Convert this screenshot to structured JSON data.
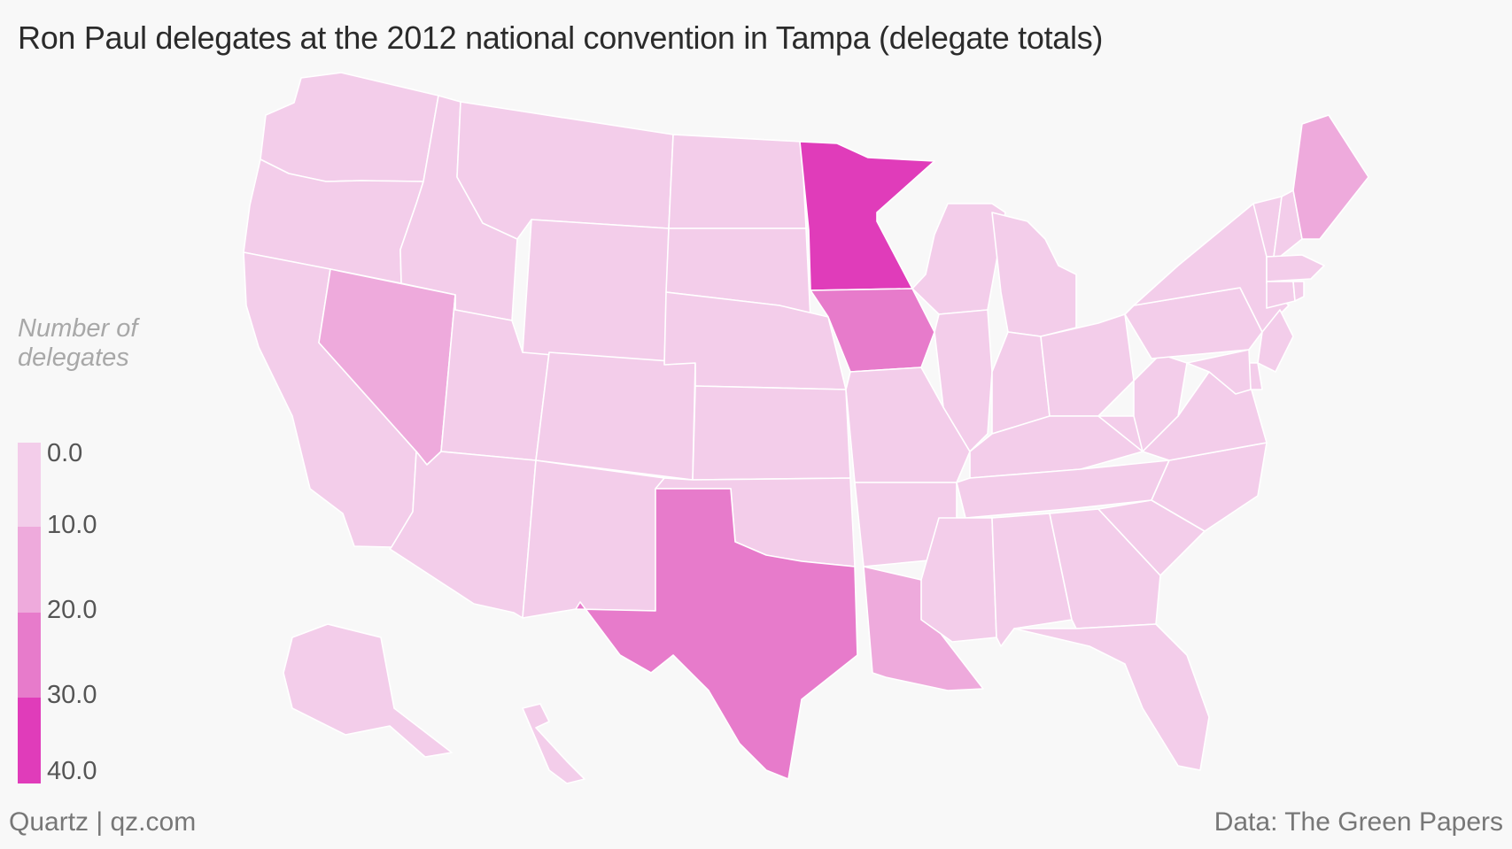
{
  "title": "Ron Paul delegates at the 2012 national convention in Tampa (delegate totals)",
  "legend": {
    "title_line1": "Number of",
    "title_line2": "delegates",
    "bins": [
      {
        "label": "0.0",
        "color": "#f3cdea"
      },
      {
        "label": "10.0",
        "color": "#eeaadc"
      },
      {
        "label": "20.0",
        "color": "#e77bcb"
      },
      {
        "label": "30.0",
        "color": "#e03cba"
      },
      {
        "label": "40.0",
        "color": null
      }
    ]
  },
  "footer": {
    "source_left": "Quartz | qz.com",
    "source_right": "Data: The Green Papers"
  },
  "map_data": {
    "type": "choropleth",
    "unit": "Number of delegates",
    "scale": [
      0,
      10,
      20,
      30,
      40
    ],
    "bin_colors": [
      "#f3cdea",
      "#eeaadc",
      "#e77bcb",
      "#e03cba"
    ],
    "states": [
      {
        "id": "WA",
        "bin": 0
      },
      {
        "id": "OR",
        "bin": 0
      },
      {
        "id": "CA",
        "bin": 0
      },
      {
        "id": "ID",
        "bin": 0
      },
      {
        "id": "NV",
        "bin": 1
      },
      {
        "id": "UT",
        "bin": 0
      },
      {
        "id": "AZ",
        "bin": 0
      },
      {
        "id": "MT",
        "bin": 0
      },
      {
        "id": "WY",
        "bin": 0
      },
      {
        "id": "CO",
        "bin": 0
      },
      {
        "id": "NM",
        "bin": 0
      },
      {
        "id": "ND",
        "bin": 0
      },
      {
        "id": "SD",
        "bin": 0
      },
      {
        "id": "NE",
        "bin": 0
      },
      {
        "id": "KS",
        "bin": 0
      },
      {
        "id": "OK",
        "bin": 0
      },
      {
        "id": "TX",
        "bin": 2
      },
      {
        "id": "MN",
        "bin": 3
      },
      {
        "id": "IA",
        "bin": 2
      },
      {
        "id": "MO",
        "bin": 0
      },
      {
        "id": "AR",
        "bin": 0
      },
      {
        "id": "LA",
        "bin": 1
      },
      {
        "id": "WI",
        "bin": 0
      },
      {
        "id": "IL",
        "bin": 0
      },
      {
        "id": "MI",
        "bin": 0
      },
      {
        "id": "IN",
        "bin": 0
      },
      {
        "id": "OH",
        "bin": 0
      },
      {
        "id": "KY",
        "bin": 0
      },
      {
        "id": "TN",
        "bin": 0
      },
      {
        "id": "MS",
        "bin": 0
      },
      {
        "id": "AL",
        "bin": 0
      },
      {
        "id": "GA",
        "bin": 0
      },
      {
        "id": "FL",
        "bin": 0
      },
      {
        "id": "SC",
        "bin": 0
      },
      {
        "id": "NC",
        "bin": 0
      },
      {
        "id": "VA",
        "bin": 0
      },
      {
        "id": "WV",
        "bin": 0
      },
      {
        "id": "PA",
        "bin": 0
      },
      {
        "id": "NY",
        "bin": 0
      },
      {
        "id": "VT",
        "bin": 0
      },
      {
        "id": "NH",
        "bin": 0
      },
      {
        "id": "ME",
        "bin": 1
      },
      {
        "id": "MA",
        "bin": 0
      },
      {
        "id": "CT",
        "bin": 0
      },
      {
        "id": "RI",
        "bin": 0
      },
      {
        "id": "NJ",
        "bin": 0
      },
      {
        "id": "DE",
        "bin": 0
      },
      {
        "id": "MD",
        "bin": 0
      },
      {
        "id": "AK",
        "bin": 0
      },
      {
        "id": "HI",
        "bin": 0
      }
    ]
  }
}
